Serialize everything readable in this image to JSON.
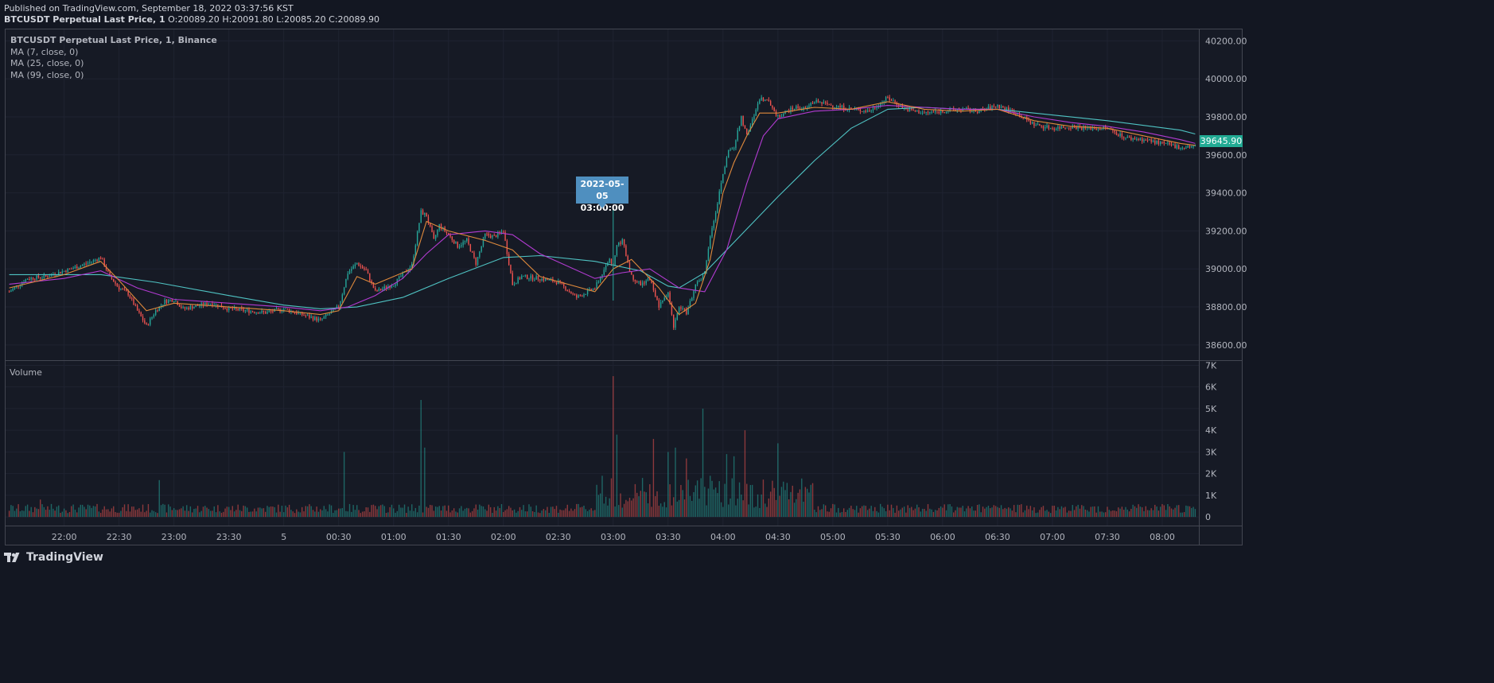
{
  "header": {
    "published": "Published on TradingView.com, September 18, 2022 03:37:56 KST",
    "symbol": "BTCUSDT Perpetual Last Price, 1",
    "o_label": "O:",
    "o_value": "20089.20",
    "h_label": "H:",
    "h_value": "20091.80",
    "l_label": "L:",
    "l_value": "20085.20",
    "c_label": "C:",
    "c_value": "20089.90"
  },
  "legend": {
    "title": "BTCUSDT Perpetual Last Price, 1, Binance",
    "ma7": "MA (7, close, 0)",
    "ma25": "MA (25, close, 0)",
    "ma99": "MA (99, close, 0)"
  },
  "volume_label": "Volume",
  "tooltip": {
    "date": "2022-05-05",
    "time": "03:00:00"
  },
  "last_price": "39645.90",
  "footer": {
    "brand": "TradingView"
  },
  "colors": {
    "up": "#26a69a",
    "down": "#ef5350",
    "ma7": "#e08a3c",
    "ma25": "#b23bd1",
    "ma99": "#4fc3c3",
    "background": "#161a25",
    "grid": "#1f2331"
  },
  "chart_data": {
    "type": "line",
    "title": "BTCUSDT Perpetual Last Price, 1, Binance",
    "price_axis": {
      "ticks": [
        38600,
        38800,
        39000,
        39200,
        39400,
        39600,
        39800,
        40000,
        40200
      ],
      "tick_labels": [
        "38600.00",
        "38800.00",
        "39000.00",
        "39200.00",
        "39400.00",
        "39600.00",
        "39800.00",
        "40000.00",
        "40200.00"
      ],
      "ylim": [
        38520,
        40260
      ]
    },
    "volume_axis": {
      "ticks": [
        0,
        1000,
        2000,
        3000,
        4000,
        5000,
        6000,
        7000
      ],
      "tick_labels": [
        "0",
        "1K",
        "2K",
        "3K",
        "4K",
        "5K",
        "6K",
        "7K"
      ],
      "ylim": [
        -400,
        7200
      ]
    },
    "time_axis": {
      "tick_labels": [
        "22:00",
        "22:30",
        "23:00",
        "23:30",
        "5",
        "00:30",
        "01:00",
        "01:30",
        "02:00",
        "02:30",
        "03:00",
        "03:30",
        "04:00",
        "04:30",
        "05:00",
        "05:30",
        "06:00",
        "06:30",
        "07:00",
        "07:30",
        "08:00"
      ],
      "tick_minutes": [
        30,
        60,
        90,
        120,
        150,
        180,
        210,
        240,
        270,
        300,
        330,
        360,
        390,
        420,
        450,
        480,
        510,
        540,
        570,
        600,
        630
      ],
      "xlim_minutes": [
        -2,
        650
      ]
    },
    "close_series": {
      "name": "BTCUSDT Perpetual Last Price",
      "x_minutes": [
        0,
        10,
        20,
        30,
        40,
        50,
        55,
        60,
        65,
        70,
        75,
        80,
        85,
        90,
        95,
        100,
        110,
        120,
        130,
        140,
        150,
        160,
        170,
        180,
        185,
        190,
        195,
        200,
        210,
        220,
        225,
        228,
        232,
        235,
        240,
        245,
        250,
        255,
        260,
        265,
        270,
        275,
        280,
        290,
        300,
        310,
        320,
        328,
        330,
        332,
        335,
        340,
        345,
        350,
        355,
        360,
        363,
        366,
        370,
        375,
        380,
        383,
        386,
        390,
        393,
        396,
        400,
        403,
        406,
        410,
        415,
        420,
        425,
        430,
        435,
        440,
        450,
        460,
        470,
        480,
        490,
        500,
        510,
        520,
        530,
        540,
        550,
        560,
        570,
        580,
        590,
        600,
        610,
        620,
        630,
        640,
        648
      ],
      "close": [
        38880,
        38950,
        38960,
        38990,
        39020,
        39060,
        38960,
        38900,
        38870,
        38780,
        38700,
        38780,
        38830,
        38840,
        38790,
        38800,
        38820,
        38790,
        38780,
        38770,
        38790,
        38760,
        38730,
        38800,
        38980,
        39030,
        38990,
        38880,
        38920,
        39020,
        39300,
        39280,
        39150,
        39230,
        39180,
        39120,
        39150,
        39030,
        39180,
        39170,
        39200,
        38920,
        38960,
        38950,
        38930,
        38850,
        38900,
        39050,
        39020,
        39120,
        39150,
        38960,
        38920,
        38950,
        38800,
        38880,
        38700,
        38800,
        38770,
        38910,
        38980,
        39180,
        39300,
        39500,
        39620,
        39640,
        39800,
        39700,
        39780,
        39900,
        39880,
        39800,
        39830,
        39850,
        39840,
        39880,
        39860,
        39840,
        39830,
        39900,
        39840,
        39820,
        39830,
        39840,
        39830,
        39860,
        39820,
        39760,
        39740,
        39750,
        39740,
        39740,
        39690,
        39680,
        39660,
        39640,
        39646
      ]
    },
    "ma7": {
      "name": "MA (7, close, 0)",
      "x_minutes": [
        0,
        30,
        50,
        60,
        75,
        90,
        120,
        150,
        170,
        180,
        190,
        200,
        220,
        228,
        240,
        260,
        275,
        290,
        320,
        330,
        340,
        355,
        366,
        375,
        383,
        390,
        396,
        403,
        410,
        420,
        440,
        460,
        480,
        500,
        520,
        540,
        560,
        580,
        600,
        620,
        640,
        648
      ],
      "values": [
        38900,
        38970,
        39040,
        38940,
        38780,
        38820,
        38800,
        38780,
        38760,
        38780,
        38960,
        38920,
        39000,
        39250,
        39200,
        39150,
        39100,
        38960,
        38880,
        39000,
        39050,
        38900,
        38760,
        38820,
        39050,
        39400,
        39560,
        39700,
        39820,
        39820,
        39850,
        39840,
        39880,
        39840,
        39830,
        39840,
        39780,
        39750,
        39740,
        39700,
        39660,
        39650
      ]
    },
    "ma25": {
      "name": "MA (25, close, 0)",
      "x_minutes": [
        0,
        30,
        50,
        70,
        90,
        120,
        150,
        170,
        185,
        200,
        215,
        228,
        240,
        260,
        275,
        290,
        320,
        335,
        350,
        366,
        380,
        392,
        403,
        412,
        420,
        440,
        460,
        480,
        500,
        520,
        540,
        560,
        580,
        600,
        620,
        640,
        648
      ],
      "values": [
        38920,
        38950,
        38990,
        38900,
        38840,
        38820,
        38800,
        38780,
        38800,
        38860,
        38950,
        39080,
        39180,
        39200,
        39180,
        39080,
        38950,
        38980,
        39000,
        38900,
        38880,
        39100,
        39450,
        39700,
        39790,
        39830,
        39840,
        39860,
        39850,
        39840,
        39840,
        39800,
        39770,
        39750,
        39720,
        39680,
        39660
      ]
    },
    "ma99": {
      "name": "MA (99, close, 0)",
      "x_minutes": [
        0,
        50,
        80,
        120,
        150,
        170,
        190,
        215,
        240,
        270,
        290,
        320,
        345,
        360,
        366,
        380,
        400,
        420,
        440,
        460,
        480,
        500,
        520,
        540,
        560,
        600,
        640,
        648
      ],
      "values": [
        38970,
        38970,
        38930,
        38860,
        38810,
        38790,
        38800,
        38850,
        38950,
        39060,
        39070,
        39040,
        38990,
        38910,
        38900,
        38980,
        39180,
        39380,
        39570,
        39740,
        39840,
        39850,
        39840,
        39840,
        39820,
        39780,
        39730,
        39710
      ]
    },
    "volume_spikes": {
      "x_minutes": [
        17,
        82,
        183,
        225,
        227,
        324,
        330,
        332,
        346,
        352,
        360,
        364,
        370,
        379,
        383,
        392,
        396,
        402,
        420,
        436
      ],
      "values": [
        800,
        1700,
        3000,
        5400,
        3200,
        1900,
        6500,
        3800,
        1800,
        3600,
        3000,
        3200,
        2700,
        5000,
        1900,
        2900,
        2800,
        4000,
        3400,
        1300
      ]
    }
  }
}
